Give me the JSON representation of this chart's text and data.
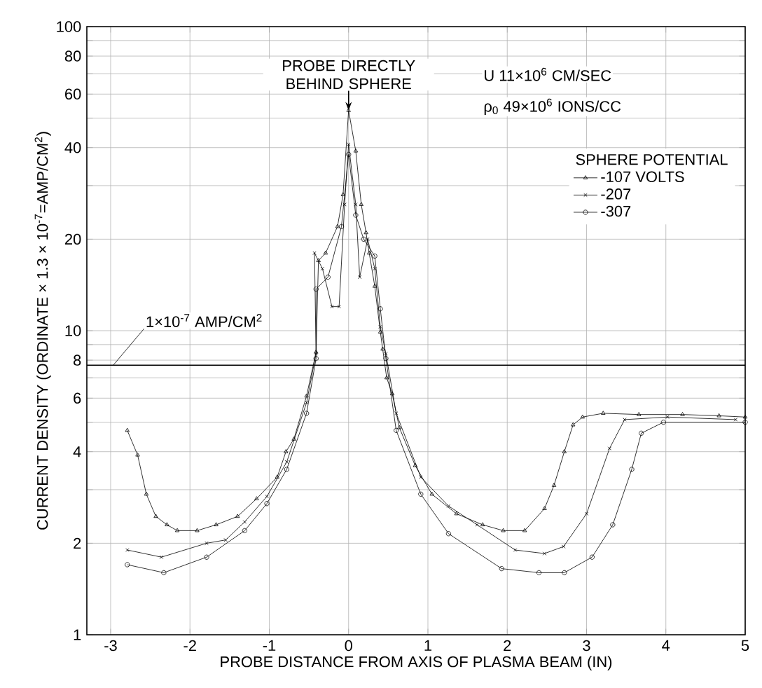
{
  "chart_data": {
    "type": "line",
    "xlabel": "PROBE DISTANCE FROM AXIS OF PLASMA BEAM (IN)",
    "ylabel": "CURRENT DENSITY (ORDINATE × 1.3 × 10$^{-7}$=AMP/CM$^{2}$)",
    "legend_title": "SPHERE POTENTIAL",
    "annotations": [
      {
        "text": "PROBE DIRECTLY BEHIND SPHERE",
        "x": 0,
        "y": 53
      },
      "U  11×10$^{6}$ CM/SEC",
      "ρ$_{0}$  49×10$^{6}$ IONS/CC"
    ],
    "ref_lines": [
      {
        "axis": "y",
        "value": 7.7,
        "label": "1×10$^{-7}$ AMP/CM$^{2}$",
        "color": "#000000"
      }
    ],
    "series": [
      {
        "name": "-107 VOLTS",
        "color": "#000000",
        "marker": "triangle",
        "x": [
          -2.79,
          -2.66,
          -2.55,
          -2.43,
          -2.29,
          -2.16,
          -1.91,
          -1.67,
          -1.4,
          -1.16,
          -0.9,
          -0.79,
          -0.69,
          -0.53,
          -0.41,
          -0.38,
          -0.29,
          -0.14,
          -0.07,
          0,
          0.09,
          0.16,
          0.22,
          0.26,
          0.33,
          0.4,
          0.43,
          0.48,
          0.55,
          0.64,
          0.84,
          1.05,
          1.36,
          1.69,
          1.95,
          2.22,
          2.47,
          2.59,
          2.72,
          2.83,
          2.95,
          3.21,
          3.66,
          4.21,
          4.67,
          5.0
        ],
        "values": [
          4.7,
          3.9,
          2.9,
          2.45,
          2.3,
          2.2,
          2.2,
          2.3,
          2.45,
          2.8,
          3.3,
          4.0,
          4.4,
          6.1,
          8.5,
          17,
          18,
          22,
          28,
          53,
          39,
          26,
          21,
          18,
          14,
          9.9,
          8.7,
          7.0,
          6.2,
          4.8,
          3.6,
          2.9,
          2.5,
          2.3,
          2.2,
          2.2,
          2.6,
          3.1,
          4.0,
          4.9,
          5.2,
          5.35,
          5.3,
          5.3,
          5.25,
          5.2
        ]
      },
      {
        "name": "-207",
        "color": "#000000",
        "marker": "cross",
        "x": [
          -2.79,
          -2.36,
          -1.79,
          -1.55,
          -1.31,
          -1.03,
          -0.78,
          -0.53,
          -0.41,
          -0.43,
          -0.33,
          -0.21,
          -0.12,
          -0.05,
          0,
          0.09,
          0.14,
          0.24,
          0.33,
          0.4,
          0.47,
          0.6,
          0.91,
          1.26,
          1.62,
          2.1,
          2.47,
          2.71,
          3.0,
          3.29,
          3.48,
          4.02,
          4.88
        ],
        "values": [
          1.9,
          1.8,
          2.0,
          2.05,
          2.35,
          2.85,
          3.7,
          5.8,
          8.4,
          18,
          16,
          12,
          12,
          26,
          41,
          26,
          15,
          20,
          16,
          10.3,
          8.4,
          5.35,
          3.3,
          2.65,
          2.3,
          1.9,
          1.85,
          1.95,
          2.5,
          4.1,
          5.1,
          5.2,
          5.1
        ]
      },
      {
        "name": "-307",
        "color": "#000000",
        "marker": "circle",
        "x": [
          -2.79,
          -2.33,
          -1.79,
          -1.31,
          -1.03,
          -0.78,
          -0.53,
          -0.41,
          -0.41,
          -0.26,
          -0.09,
          0,
          0.09,
          0.19,
          0.33,
          0.4,
          0.47,
          0.6,
          0.91,
          1.26,
          1.93,
          2.4,
          2.72,
          3.07,
          3.33,
          3.57,
          3.69,
          3.97,
          5.0
        ],
        "values": [
          1.7,
          1.6,
          1.8,
          2.2,
          2.7,
          3.5,
          5.35,
          8.1,
          13.7,
          15,
          22,
          38,
          24,
          20,
          17.6,
          11.8,
          8.1,
          4.7,
          2.9,
          2.15,
          1.65,
          1.6,
          1.6,
          1.8,
          2.3,
          3.5,
          4.6,
          5.0,
          5.0
        ]
      }
    ],
    "xlim": [
      -3.3,
      5
    ],
    "xticks": [
      -3,
      -2,
      -1,
      0,
      1,
      2,
      3,
      4,
      5
    ],
    "ylim": [
      1,
      100
    ],
    "yticks": [
      1,
      2,
      {
        "value": 3,
        "label": null
      },
      4,
      {
        "value": 5,
        "label": null
      },
      6,
      {
        "value": 7,
        "label": null
      },
      8,
      {
        "value": 9,
        "label": null
      },
      10,
      20,
      {
        "value": 30,
        "label": null
      },
      40,
      {
        "value": 50,
        "label": null
      },
      60,
      {
        "value": 70,
        "label": null
      },
      80,
      {
        "value": 90,
        "label": null
      },
      100
    ],
    "log": true,
    "grid": true,
    "legend": "top right"
  }
}
